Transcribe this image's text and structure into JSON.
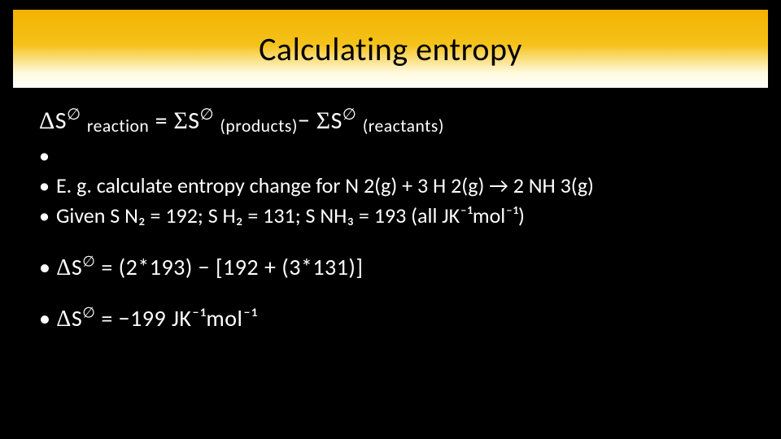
{
  "slide": {
    "title": "Calculating entropy",
    "title_fontsize": 40,
    "title_color": "#000000",
    "title_bar_gradient": [
      "#f3b200",
      "#f5c21a",
      "#fff9da",
      "#ffffff"
    ],
    "background_color": "#000000",
    "text_color": "#ffffff",
    "formula": {
      "delta": "Δ",
      "s_std": "S",
      "std_symbol": "∅",
      "sub_reaction": "reaction",
      "equals": " = ",
      "sigma": "Σ",
      "sub_products": "(products)",
      "minus": "− ",
      "sub_reactants": "(reactants)"
    },
    "bullets": [
      "",
      "E. g. calculate entropy change for N 2(g) + 3 H 2(g) → 2 NH 3(g)",
      "Given S N₂ = 192;   S H₂ = 131;   S NH₃ = 193  (all JK⁻¹mol⁻¹)"
    ],
    "calc1": {
      "prefix": "Δ",
      "s": "S",
      "std": "∅",
      "eq": " = ",
      "rhs": "(2*193) − [192 +  (3*131)]"
    },
    "calc2": {
      "prefix": "Δ",
      "s": "S",
      "std": "∅",
      "eq": " = ",
      "rhs": "−199 JK⁻¹mol⁻¹"
    }
  }
}
